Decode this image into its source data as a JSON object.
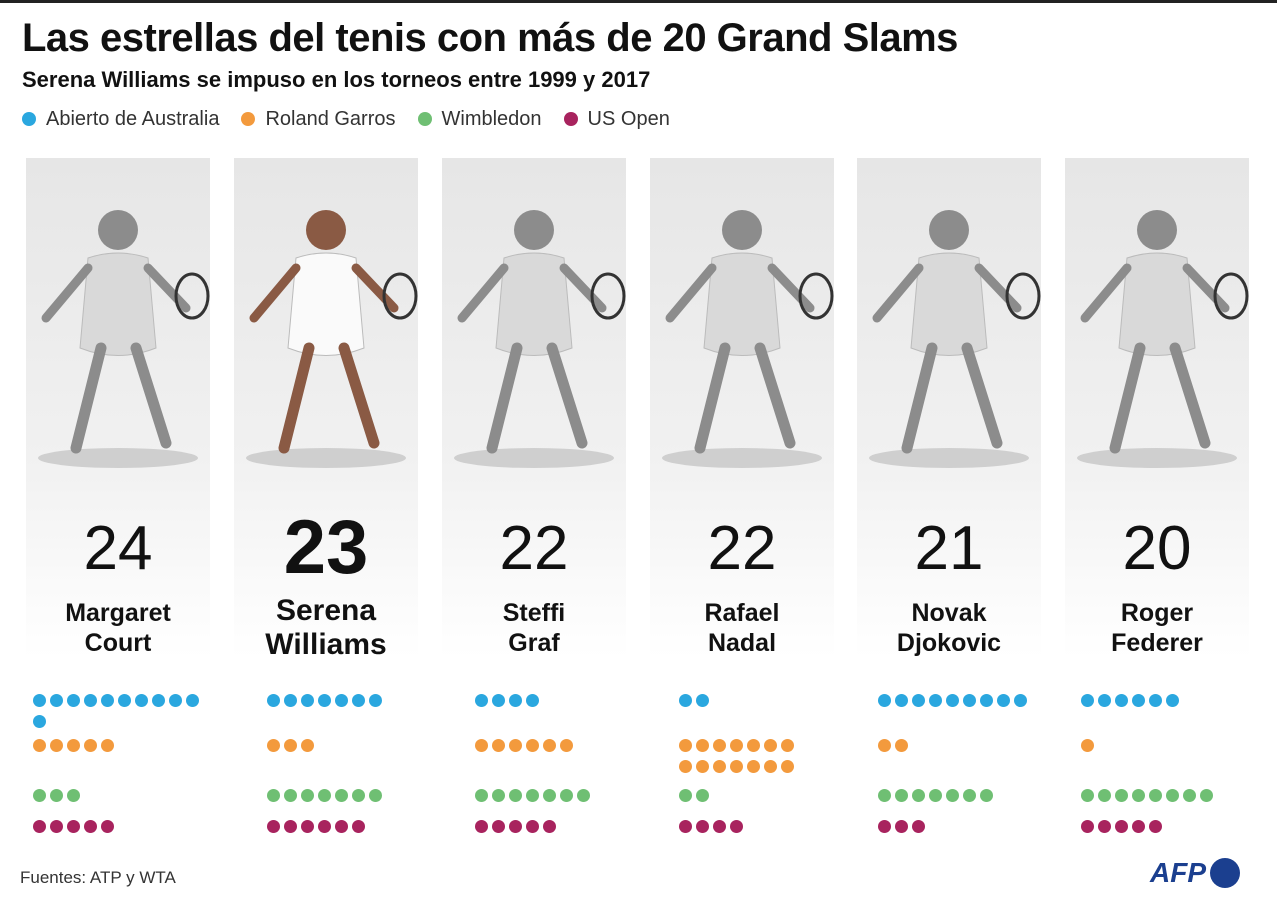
{
  "title": "Las estrellas del tenis con más de 20 Grand Slams",
  "subtitle": "Serena Williams se impuso en los torneos entre 1999 y 2017",
  "legend": [
    {
      "label": "Abierto de Australia",
      "color": "#2aa7df"
    },
    {
      "label": "Roland Garros",
      "color": "#f39a3d"
    },
    {
      "label": "Wimbledon",
      "color": "#6fbf73"
    },
    {
      "label": "US Open",
      "color": "#a8235e"
    }
  ],
  "source": "Fuentes: ATP y WTA",
  "logo": "AFP",
  "chart_data": {
    "type": "table",
    "title": "Las estrellas del tenis con más de 20 Grand Slams",
    "subtitle": "Serena Williams se impuso en los torneos entre 1999 y 2017",
    "categories": [
      "Abierto de Australia",
      "Roland Garros",
      "Wimbledon",
      "US Open"
    ],
    "players": [
      {
        "name_line1": "Margaret",
        "name_line2": "Court",
        "total": "24",
        "highlight": false,
        "titles": {
          "Abierto de Australia": 11,
          "Roland Garros": 5,
          "Wimbledon": 3,
          "US Open": 5
        }
      },
      {
        "name_line1": "Serena",
        "name_line2": "Williams",
        "total": "23",
        "highlight": true,
        "titles": {
          "Abierto de Australia": 7,
          "Roland Garros": 3,
          "Wimbledon": 7,
          "US Open": 6
        }
      },
      {
        "name_line1": "Steffi",
        "name_line2": "Graf",
        "total": "22",
        "highlight": false,
        "titles": {
          "Abierto de Australia": 4,
          "Roland Garros": 6,
          "Wimbledon": 7,
          "US Open": 5
        }
      },
      {
        "name_line1": "Rafael",
        "name_line2": "Nadal",
        "total": "22",
        "highlight": false,
        "titles": {
          "Abierto de Australia": 2,
          "Roland Garros": 14,
          "Wimbledon": 2,
          "US Open": 4
        }
      },
      {
        "name_line1": "Novak",
        "name_line2": "Djokovic",
        "total": "21",
        "highlight": false,
        "titles": {
          "Abierto de Australia": 9,
          "Roland Garros": 2,
          "Wimbledon": 7,
          "US Open": 3
        }
      },
      {
        "name_line1": "Roger",
        "name_line2": "Federer",
        "total": "20",
        "highlight": false,
        "titles": {
          "Abierto de Australia": 6,
          "Roland Garros": 1,
          "Wimbledon": 8,
          "US Open": 5
        }
      }
    ]
  }
}
